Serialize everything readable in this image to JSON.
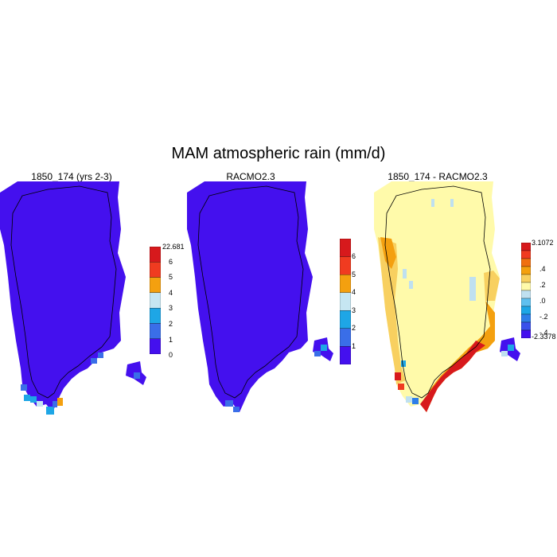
{
  "title": "MAM atmospheric rain (mm/d)",
  "panels": [
    {
      "title": "1850_174 (yrs 2-3)",
      "colorbar": {
        "labels": [
          "22.681",
          "6",
          "5",
          "4",
          "3",
          "2",
          "1",
          "0"
        ],
        "colors": [
          "#d7191c",
          "#f03b20",
          "#f4a00f",
          "#c6e6f2",
          "#1ea6e6",
          "#3a6ee8",
          "#4410ee"
        ]
      }
    },
    {
      "title": "RACMO2.3",
      "colorbar": {
        "labels": [
          "6",
          "5",
          "4",
          "3",
          "2",
          "1"
        ],
        "colors": [
          "#d7191c",
          "#f03b20",
          "#f4a00f",
          "#c6e6f2",
          "#1ea6e6",
          "#3a6ee8",
          "#4410ee"
        ]
      }
    },
    {
      "title": "1850_174 - RACMO2.3",
      "colorbar": {
        "labels": [
          "3.1072",
          ".4",
          ".2",
          ".0",
          "-.2",
          "-.4",
          "-2.3378"
        ],
        "colors": [
          "#d7191c",
          "#f03b20",
          "#f07010",
          "#f4a00f",
          "#f8d060",
          "#fffaaa",
          "#bfe0f0",
          "#5fc0f0",
          "#1ea6e6",
          "#2e7ee8",
          "#3a50ea",
          "#4410ee"
        ]
      }
    }
  ]
}
